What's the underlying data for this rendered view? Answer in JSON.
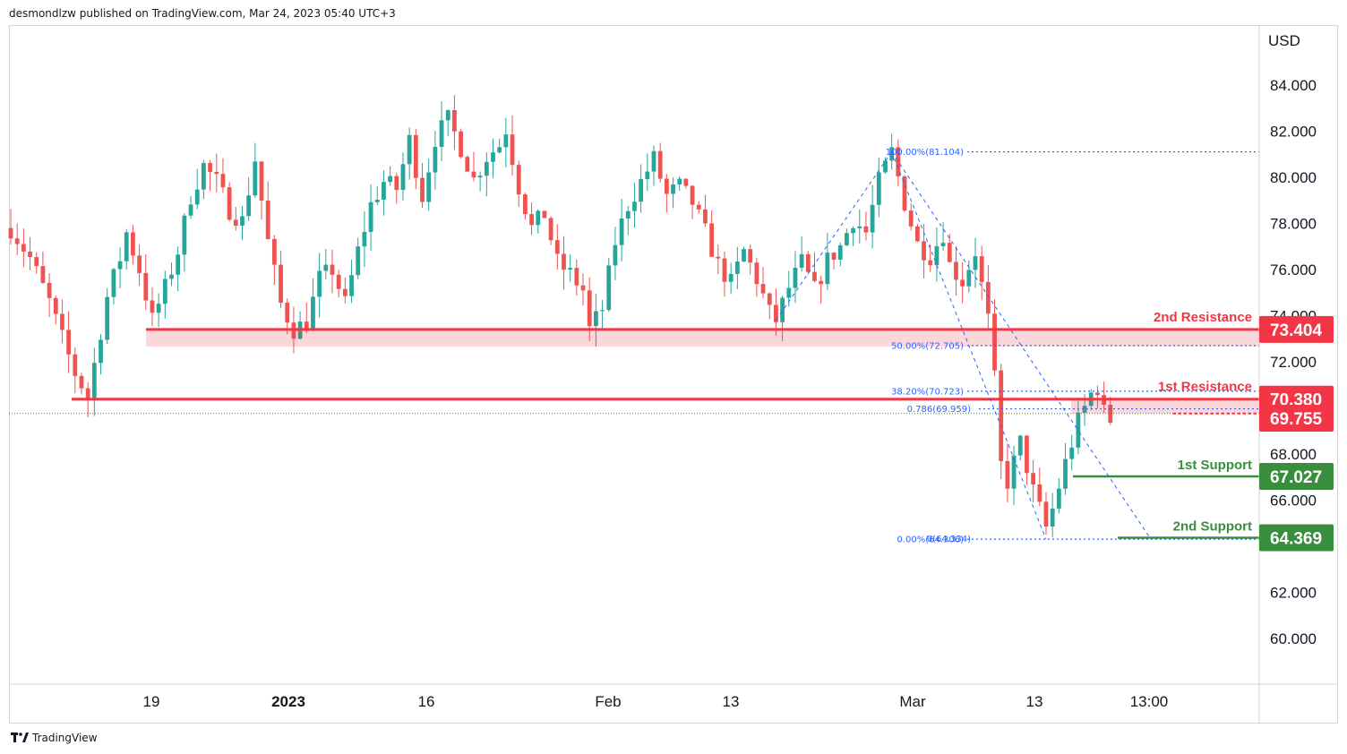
{
  "header": {
    "publisher": "desmondlzw published on TradingView.com, Mar 24, 2023 05:40 UTC+3"
  },
  "footer": {
    "brand": "TradingView"
  },
  "colors": {
    "red": "#f23645",
    "green": "#388e3c",
    "blue": "#2962ff",
    "candle_up": "#26a69a",
    "candle_down": "#ef5350"
  },
  "chart_data": {
    "type": "candlestick",
    "currency_label": "USD",
    "y_ticks": [
      "84.000",
      "82.000",
      "80.000",
      "78.000",
      "76.000",
      "74.000",
      "72.000",
      "68.000",
      "66.000",
      "62.000",
      "60.000"
    ],
    "ylim": [
      58.0,
      87.5
    ],
    "x_ticks": [
      {
        "label": "19",
        "bold": false
      },
      {
        "label": "2023",
        "bold": true
      },
      {
        "label": "16",
        "bold": false
      },
      {
        "label": "Feb",
        "bold": false
      },
      {
        "label": "13",
        "bold": false
      },
      {
        "label": "Mar",
        "bold": false
      },
      {
        "label": "13",
        "bold": false
      },
      {
        "label": "13:00",
        "bold": false
      }
    ],
    "price_path": [
      [
        0,
        77.8
      ],
      [
        3,
        76.5
      ],
      [
        6,
        74.6
      ],
      [
        8,
        73.0
      ],
      [
        10,
        71.5
      ],
      [
        12,
        70.5
      ],
      [
        13,
        71.9
      ],
      [
        15,
        74.8
      ],
      [
        17,
        76.5
      ],
      [
        18,
        77.6
      ],
      [
        20,
        76.0
      ],
      [
        22,
        73.8
      ],
      [
        24,
        75.2
      ],
      [
        26,
        76.8
      ],
      [
        28,
        79.2
      ],
      [
        30,
        80.5
      ],
      [
        32,
        79.8
      ],
      [
        34,
        78.6
      ],
      [
        36,
        78.1
      ],
      [
        38,
        80.8
      ],
      [
        40,
        77.2
      ],
      [
        42,
        74.5
      ],
      [
        44,
        73.4
      ],
      [
        46,
        73.7
      ],
      [
        48,
        75.6
      ],
      [
        50,
        76.0
      ],
      [
        52,
        74.5
      ],
      [
        54,
        76.8
      ],
      [
        56,
        78.8
      ],
      [
        58,
        79.8
      ],
      [
        60,
        79.5
      ],
      [
        62,
        81.6
      ],
      [
        64,
        79.2
      ],
      [
        66,
        81.7
      ],
      [
        68,
        82.5
      ],
      [
        70,
        81.3
      ],
      [
        72,
        79.9
      ],
      [
        74,
        80.9
      ],
      [
        76,
        81.4
      ],
      [
        77,
        82.1
      ],
      [
        79,
        79.6
      ],
      [
        81,
        77.8
      ],
      [
        83,
        78.4
      ],
      [
        85,
        76.3
      ],
      [
        87,
        75.8
      ],
      [
        89,
        75.1
      ],
      [
        90,
        73.4
      ],
      [
        92,
        74.3
      ],
      [
        94,
        77.2
      ],
      [
        96,
        78.8
      ],
      [
        98,
        79.8
      ],
      [
        100,
        80.8
      ],
      [
        102,
        79.2
      ],
      [
        104,
        79.6
      ],
      [
        106,
        78.9
      ],
      [
        108,
        77.6
      ],
      [
        110,
        76.2
      ],
      [
        112,
        75.4
      ],
      [
        114,
        76.8
      ],
      [
        116,
        75.6
      ],
      [
        118,
        74.1
      ],
      [
        119,
        73.8
      ],
      [
        121,
        75.2
      ],
      [
        123,
        76.3
      ],
      [
        125,
        75.1
      ],
      [
        127,
        76.4
      ],
      [
        129,
        77.0
      ],
      [
        131,
        78.2
      ],
      [
        133,
        77.6
      ],
      [
        135,
        79.8
      ],
      [
        137,
        81.1
      ],
      [
        139,
        78.9
      ],
      [
        141,
        77.1
      ],
      [
        143,
        76.6
      ],
      [
        145,
        77.6
      ],
      [
        146,
        76.2
      ],
      [
        148,
        75.5
      ],
      [
        150,
        76.8
      ],
      [
        152,
        73.8
      ],
      [
        153,
        71.2
      ],
      [
        154,
        67.5
      ],
      [
        155,
        66.8
      ],
      [
        157,
        68.5
      ],
      [
        159,
        66.4
      ],
      [
        161,
        64.8
      ],
      [
        162,
        65.6
      ],
      [
        164,
        67.6
      ],
      [
        166,
        69.4
      ],
      [
        168,
        70.6
      ],
      [
        169,
        70.9
      ],
      [
        170,
        69.8
      ],
      [
        171,
        69.5
      ]
    ],
    "levels": [
      {
        "name": "2nd Resistance",
        "value": 73.404,
        "badge": "73.404",
        "color": "red"
      },
      {
        "name": "1st Resistance",
        "value": 70.38,
        "badge": "70.380",
        "color": "red"
      },
      {
        "name": "1st Support",
        "value": 67.027,
        "badge": "67.027",
        "color": "green"
      },
      {
        "name": "2nd Support",
        "value": 64.369,
        "badge": "64.369",
        "color": "green"
      }
    ],
    "current_price": {
      "value": 69.755,
      "badge": "69.755"
    },
    "fibonacci": [
      {
        "label": "100.00%(81.104)",
        "value": 81.104
      },
      {
        "label": "50.00%(72.705)",
        "value": 72.705
      },
      {
        "label": "38.20%(70.723)",
        "value": 70.723
      },
      {
        "label": "0.786(69.959)",
        "value": 69.959
      },
      {
        "label": "0(64.334)",
        "value": 64.334
      },
      {
        "label": "0.00%(64.306)",
        "value": 64.306
      }
    ]
  }
}
